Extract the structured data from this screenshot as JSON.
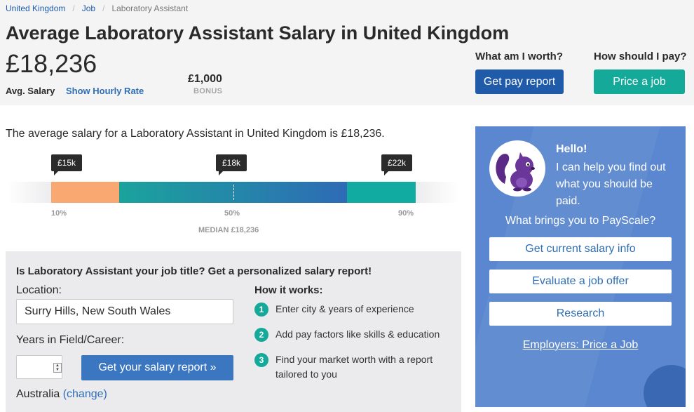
{
  "breadcrumb": {
    "items": [
      "United Kingdom",
      "Job",
      "Laboratory Assistant"
    ],
    "separator": "/"
  },
  "page_title": "Average Laboratory Assistant Salary in United Kingdom",
  "salary": {
    "value": "£18,236",
    "label": "Avg. Salary",
    "hourly_link": "Show Hourly Rate",
    "bonus_value": "£1,000",
    "bonus_label": "BONUS"
  },
  "cta": {
    "worth_q": "What am I worth?",
    "worth_btn": "Get pay report",
    "pay_q": "How should I pay?",
    "pay_btn": "Price a job"
  },
  "summary": "The average salary for a Laboratory Assistant in United Kingdom is £18,236.",
  "distribution": {
    "tip_low": "£15k",
    "tip_mid": "£18k",
    "tip_high": "£22k",
    "p10": "10%",
    "p50": "50%",
    "p90": "90%",
    "median_label": "MEDIAN £18,236",
    "colors": {
      "low": "#f8a870",
      "mid_start": "#1aa39c",
      "mid_end": "#2e6bb6",
      "high": "#12aba1"
    }
  },
  "form": {
    "title": "Is Laboratory Assistant your job title? Get a personalized salary report!",
    "location_label": "Location:",
    "location_value": "Surry Hills, New South Wales",
    "years_label": "Years in Field/Career:",
    "submit": "Get your salary report »",
    "country": "Australia",
    "change": "(change)",
    "how_title": "How it works:",
    "steps": [
      {
        "num": "1",
        "text": "Enter city & years of experience"
      },
      {
        "num": "2",
        "text": "Add pay factors like skills & education"
      },
      {
        "num": "3",
        "text": "Find your market worth with a report tailored to you"
      }
    ]
  },
  "assistant": {
    "hello": "Hello!",
    "help": "I can help you find out what you should be paid.",
    "question": "What brings you to PayScale?",
    "options": [
      "Get current salary info",
      "Evaluate a job offer",
      "Research"
    ],
    "employers_link": "Employers: Price a Job",
    "mascot": "squirrel-mascot-icon"
  }
}
